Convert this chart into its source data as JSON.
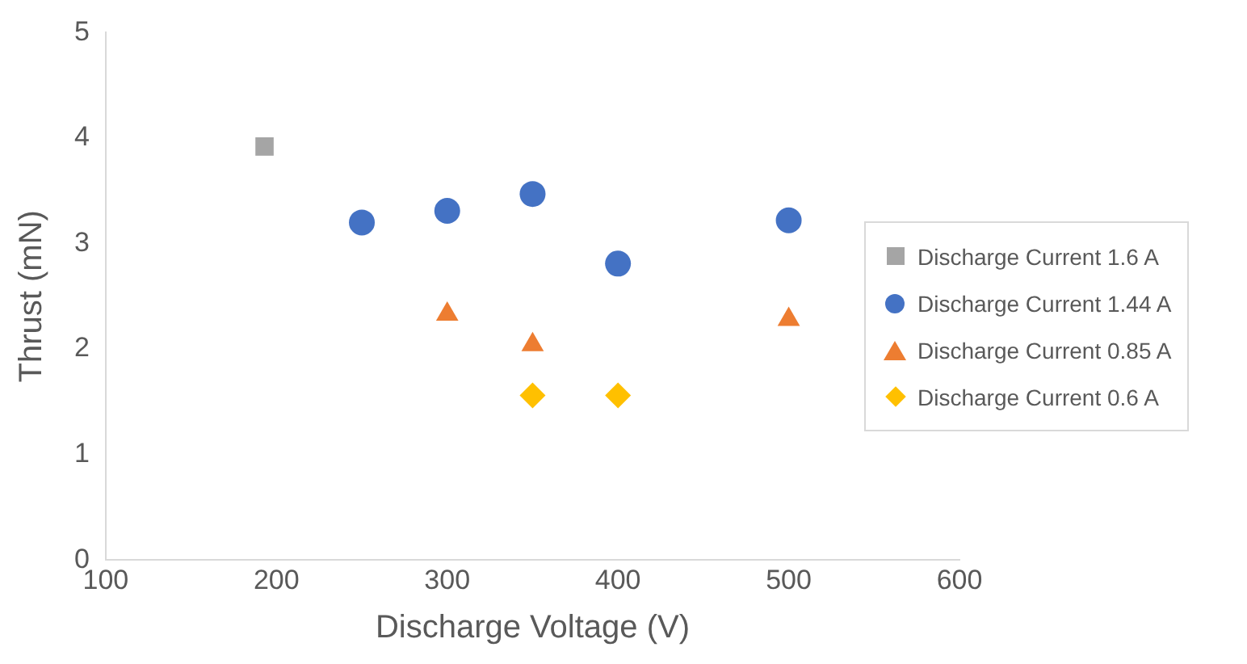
{
  "chart_data": {
    "type": "scatter",
    "xlabel": "Discharge Voltage (V)",
    "ylabel": "Thrust (mN)",
    "xlim": [
      100,
      600
    ],
    "xticks": [
      100,
      200,
      300,
      400,
      500,
      600
    ],
    "ylim": [
      0,
      5
    ],
    "yticks": [
      0,
      1,
      2,
      3,
      4,
      5
    ],
    "grid": false,
    "legend": "right",
    "series": [
      {
        "name": "Discharge Current 1.6 A",
        "color": "#a5a5a5",
        "marker": "square",
        "x": [
          193
        ],
        "values": [
          3.92
        ]
      },
      {
        "name": "Discharge Current 1.44 A",
        "color": "#4472c4",
        "marker": "circle",
        "x": [
          250,
          300,
          350,
          400,
          500
        ],
        "values": [
          3.2,
          3.31,
          3.47,
          2.81,
          3.22
        ]
      },
      {
        "name": "Discharge Current 0.85 A",
        "color": "#ed7d31",
        "marker": "triangle",
        "x": [
          300,
          350,
          500
        ],
        "values": [
          2.33,
          2.04,
          2.28
        ]
      },
      {
        "name": "Discharge Current 0.6 A",
        "color": "#ffc000",
        "marker": "diamond",
        "x": [
          350,
          400
        ],
        "values": [
          1.56,
          1.56
        ]
      }
    ]
  }
}
